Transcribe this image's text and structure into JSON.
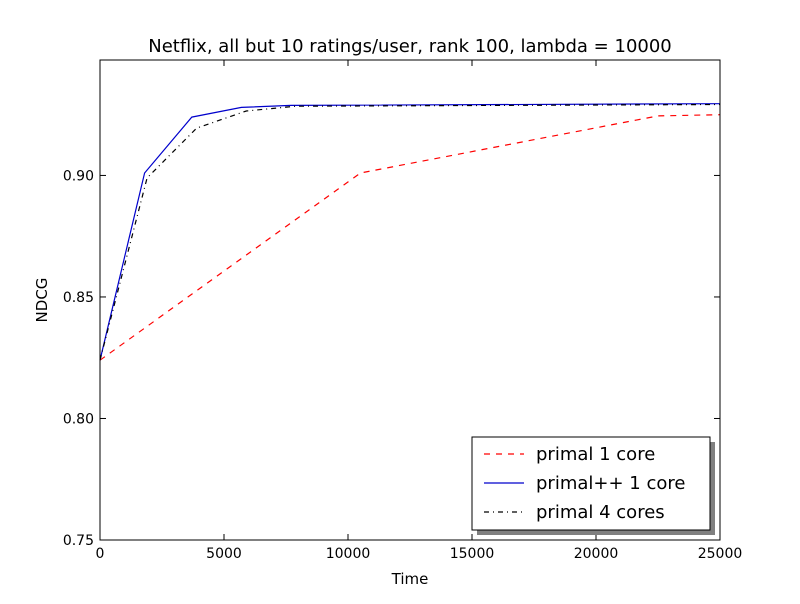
{
  "chart_data": {
    "type": "line",
    "title": "Netflix, all but 10 ratings/user, rank 100, lambda = 10000",
    "xlabel": "Time",
    "ylabel": "NDCG",
    "xlim": [
      0,
      25000
    ],
    "ylim": [
      0.75,
      0.9475
    ],
    "xticks": [
      0,
      5000,
      10000,
      15000,
      20000,
      25000
    ],
    "xtick_labels": [
      "0",
      "5000",
      "10000",
      "15000",
      "20000",
      "25000"
    ],
    "yticks": [
      0.75,
      0.8,
      0.85,
      0.9
    ],
    "ytick_labels": [
      "0.75",
      "0.80",
      "0.85",
      "0.90"
    ],
    "grid": false,
    "legend_position": "lower-right",
    "series": [
      {
        "name": "primal 1 core",
        "color": "#ff0000",
        "dash": "dashed",
        "x": [
          0,
          10500,
          22500,
          25000
        ],
        "y": [
          0.824,
          0.901,
          0.9245,
          0.925
        ]
      },
      {
        "name": "primal++ 1 core",
        "color": "#0000cc",
        "dash": "solid",
        "x": [
          0,
          1800,
          3700,
          5700,
          7700,
          25000
        ],
        "y": [
          0.824,
          0.901,
          0.924,
          0.928,
          0.9288,
          0.9295
        ]
      },
      {
        "name": "primal 4 cores",
        "color": "#000000",
        "dash": "dashdot",
        "x": [
          0,
          1900,
          3900,
          5900,
          7900,
          25000
        ],
        "y": [
          0.824,
          0.899,
          0.9195,
          0.9265,
          0.9285,
          0.9292
        ]
      }
    ]
  }
}
